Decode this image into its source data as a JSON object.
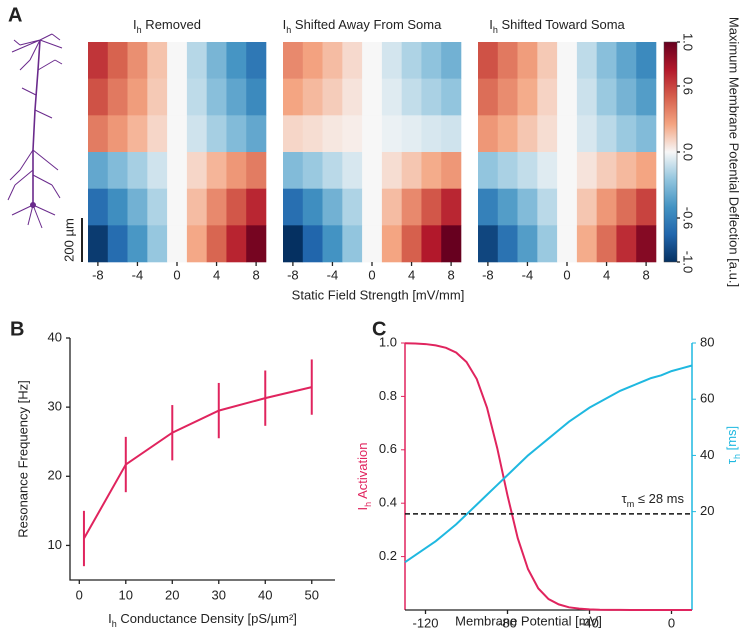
{
  "chart_data": [
    {
      "type": "heatmap",
      "panel": "A",
      "x": [
        -8,
        -6,
        -4,
        -2,
        0,
        2,
        4,
        6,
        8
      ],
      "xlim": [
        -9,
        9
      ],
      "xticks": [
        -8,
        -4,
        0,
        4,
        8
      ],
      "xlabel": "Static Field Strength [mV/mm]",
      "scale_bar": "200 µm",
      "zlim": [
        -1,
        1
      ],
      "zticks": [
        {
          "value": 1,
          "label": "1.0"
        },
        0.6,
        {
          "value": 0,
          "label": "0.0"
        },
        -0.6,
        {
          "value": -1,
          "label": "-1.0"
        }
      ],
      "zlabel": "Maximum Membrane Potential Deflection [a.u.]",
      "colormap": [
        "#053061",
        "#2166ac",
        "#4393c3",
        "#92c5de",
        "#f7f7f7",
        "#f4a582",
        "#d6604d",
        "#b2182b",
        "#67001f"
      ],
      "maps": [
        {
          "title": [
            "I",
            "h",
            " Removed"
          ],
          "values": [
            [
              0.65,
              0.49,
              0.33,
              0.16,
              0,
              -0.16,
              -0.33,
              -0.49,
              -0.65
            ],
            [
              0.55,
              0.41,
              0.28,
              0.14,
              0,
              -0.14,
              -0.28,
              -0.41,
              -0.55
            ],
            [
              0.4,
              0.3,
              0.2,
              0.1,
              0,
              -0.1,
              -0.2,
              -0.3,
              -0.4
            ],
            [
              -0.4,
              -0.3,
              -0.2,
              -0.1,
              0,
              0.1,
              0.2,
              0.3,
              0.4
            ],
            [
              -0.7,
              -0.53,
              -0.35,
              -0.18,
              0,
              0.18,
              0.35,
              0.53,
              0.7
            ],
            [
              -0.95,
              -0.71,
              -0.48,
              -0.24,
              0,
              0.24,
              0.48,
              0.71,
              0.95
            ]
          ]
        },
        {
          "title": [
            "I",
            "h",
            " Shifted Away From Soma"
          ],
          "values": [
            [
              0.35,
              0.26,
              0.18,
              0.09,
              0,
              -0.09,
              -0.18,
              -0.26,
              -0.35
            ],
            [
              0.25,
              0.19,
              0.13,
              0.06,
              0,
              -0.06,
              -0.13,
              -0.19,
              -0.25
            ],
            [
              0.1,
              0.08,
              0.05,
              0.03,
              0,
              -0.03,
              -0.05,
              -0.08,
              -0.1
            ],
            [
              -0.3,
              -0.23,
              -0.15,
              -0.08,
              0,
              0.08,
              0.15,
              0.23,
              0.3
            ],
            [
              -0.7,
              -0.53,
              -0.35,
              -0.18,
              0,
              0.18,
              0.35,
              0.53,
              0.7
            ],
            [
              -1,
              -0.75,
              -0.5,
              -0.25,
              0,
              0.25,
              0.5,
              0.75,
              1
            ]
          ]
        },
        {
          "title": [
            "I",
            "h",
            " Shifted Toward Soma"
          ],
          "values": [
            [
              0.55,
              0.41,
              0.28,
              0.14,
              0,
              -0.14,
              -0.28,
              -0.41,
              -0.55
            ],
            [
              0.45,
              0.34,
              0.23,
              0.11,
              0,
              -0.11,
              -0.23,
              -0.34,
              -0.45
            ],
            [
              0.3,
              0.23,
              0.15,
              0.08,
              0,
              -0.08,
              -0.15,
              -0.23,
              -0.3
            ],
            [
              -0.25,
              -0.19,
              -0.13,
              -0.06,
              0,
              0.06,
              0.13,
              0.19,
              0.25
            ],
            [
              -0.6,
              -0.45,
              -0.3,
              -0.15,
              0,
              0.15,
              0.3,
              0.45,
              0.6
            ],
            [
              -0.9,
              -0.68,
              -0.45,
              -0.23,
              0,
              0.23,
              0.45,
              0.68,
              0.9
            ]
          ]
        }
      ]
    },
    {
      "type": "line",
      "panel": "B",
      "x": [
        1,
        10,
        20,
        30,
        40,
        50
      ],
      "values": [
        11,
        21.7,
        26.3,
        29.5,
        31.3,
        32.9
      ],
      "errors": [
        4,
        4,
        4,
        4,
        4,
        4
      ],
      "color": "#e0245e",
      "xlim": [
        -2,
        55
      ],
      "xticks": [
        0,
        10,
        20,
        30,
        40,
        50
      ],
      "ylim": [
        5,
        40
      ],
      "yticks": [
        10,
        20,
        30,
        40
      ],
      "xlabel": [
        "I",
        "h",
        " Conductance Density [pS/µm²]"
      ],
      "ylabel": "Resonance Frequency [Hz]"
    },
    {
      "type": "dual_line",
      "panel": "C",
      "x": [
        -130,
        -125,
        -120,
        -115,
        -110,
        -105,
        -100,
        -95,
        -90,
        -85,
        -80,
        -75,
        -70,
        -65,
        -60,
        -55,
        -50,
        -45,
        -40,
        -35,
        -30,
        -25,
        -20,
        -15,
        -10,
        -5,
        0,
        5,
        10
      ],
      "xlim": [
        -130,
        10
      ],
      "xticks": [
        -120,
        -80,
        -40,
        0
      ],
      "xlabel": "Membrane Potential [mV]",
      "ylim": [
        0,
        1
      ],
      "yticks": [
        0.2,
        0.4,
        0.6,
        0.8,
        {
          "value": 1,
          "label": "1.0"
        }
      ],
      "y2lim": [
        -15,
        80
      ],
      "y2ticks": [
        20,
        40,
        60,
        80
      ],
      "series": [
        {
          "name": [
            "I",
            "h",
            " Activation"
          ],
          "color": "#e0245e",
          "values": [
            0.999,
            0.998,
            0.996,
            0.991,
            0.982,
            0.964,
            0.929,
            0.865,
            0.758,
            0.606,
            0.429,
            0.269,
            0.153,
            0.081,
            0.041,
            0.021,
            0.01,
            0.005,
            0.0025,
            0.001,
            0.0006,
            0.0003,
            0.0001,
            0,
            0,
            0,
            0,
            0,
            0
          ]
        },
        {
          "name": [
            "τ",
            "h",
            " [ms]"
          ],
          "color": "#1fb8e0",
          "axis": "y2",
          "values": [
            2,
            4.5,
            7,
            9.5,
            12.5,
            15.5,
            19,
            22.5,
            26,
            29.5,
            33,
            36.5,
            40,
            43,
            46,
            49,
            52,
            54.5,
            57,
            59,
            61,
            63,
            64.5,
            66,
            67.5,
            68.5,
            70,
            71,
            72
          ]
        }
      ],
      "hline": 0.36,
      "annotation": [
        "τ",
        "m",
        " ≤ 28 ms"
      ]
    }
  ]
}
